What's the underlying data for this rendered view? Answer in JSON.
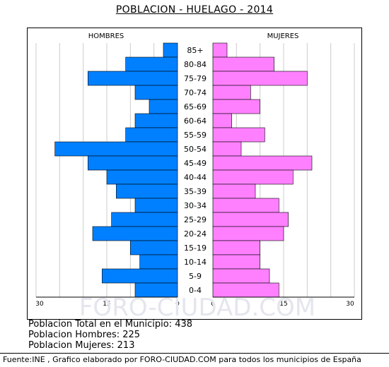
{
  "title": "POBLACION - HUELAGO - 2014",
  "watermark": "FORO-CIUDAD.COM",
  "stats": {
    "total": "Poblacion Total en el Municipio: 438",
    "hombres": "Poblacion Hombres: 225",
    "mujeres": "Poblacion Mujeres: 213"
  },
  "footer": "Fuente:INE , Grafico elaborado por FORO-CIUDAD.COM para todos los municipios de España",
  "chart_data": {
    "type": "bar",
    "orientation": "horizontal-population-pyramid",
    "categories": [
      "85+",
      "80-84",
      "75-79",
      "70-74",
      "65-69",
      "60-64",
      "55-59",
      "50-54",
      "45-49",
      "40-44",
      "35-39",
      "30-34",
      "25-29",
      "20-24",
      "15-19",
      "10-14",
      "5-9",
      "0-4"
    ],
    "series": [
      {
        "name": "HOMBRES",
        "color": "#0080ff",
        "values": [
          3,
          11,
          19,
          9,
          6,
          9,
          11,
          26,
          19,
          15,
          13,
          9,
          14,
          18,
          10,
          8,
          16,
          9
        ]
      },
      {
        "name": "MUJERES",
        "color": "#ff80ff",
        "values": [
          3,
          13,
          20,
          8,
          10,
          4,
          11,
          6,
          21,
          17,
          9,
          14,
          16,
          15,
          10,
          10,
          12,
          14
        ]
      }
    ],
    "xlim": [
      0,
      30
    ],
    "ticks_left": [
      "30",
      "15",
      "0"
    ],
    "ticks_right": [
      "0",
      "15",
      "30"
    ],
    "grid": true,
    "grid_color": "#cccccc"
  }
}
